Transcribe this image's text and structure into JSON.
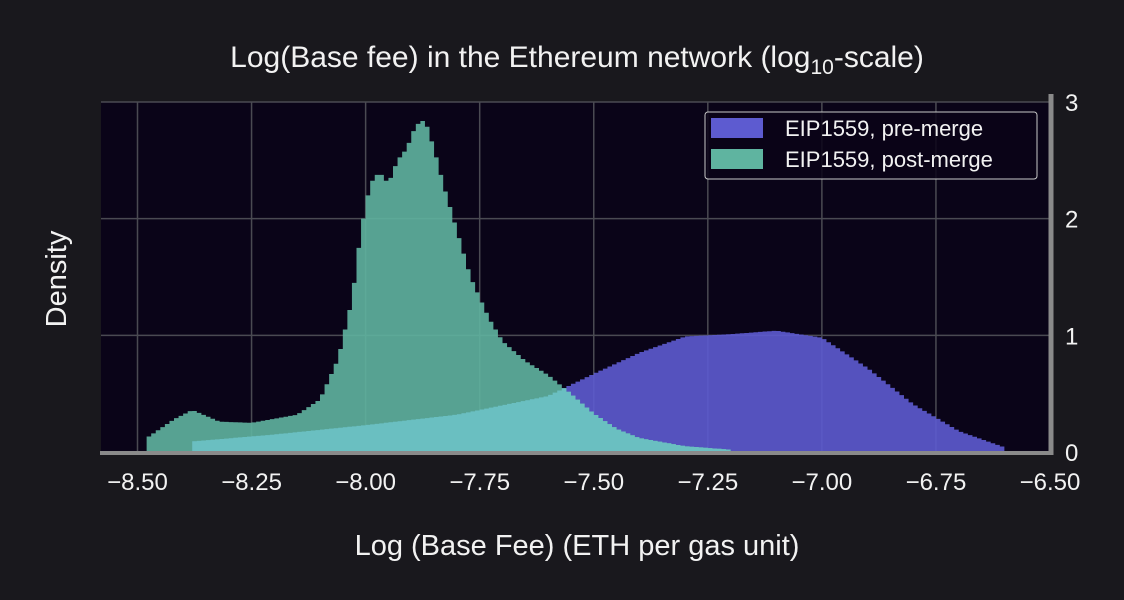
{
  "colors": {
    "background": "#19181d",
    "plot_background": "#0a0418",
    "grid": "#4a4a52",
    "spine": "#8a8a8a",
    "pre_merge": "#5d5bd0",
    "post_merge": "#5fb4a0",
    "overlap": "#6ac0c3",
    "text": "#f2f2f2"
  },
  "chart_data": {
    "type": "area",
    "title_main": "Log(Base fee) in the Ethereum network (log",
    "title_sub": "10",
    "title_end": "-scale)",
    "xlabel": "Log (Base Fee) (ETH per gas unit)",
    "ylabel": "Density",
    "xlim": [
      -8.58,
      -6.5
    ],
    "ylim": [
      0,
      3
    ],
    "y_axis_position": "right",
    "grid": true,
    "legend_position": "top-right",
    "x_ticks": [
      -8.5,
      -8.25,
      -8.0,
      -7.75,
      -7.5,
      -7.25,
      -7.0,
      -6.75,
      -6.5
    ],
    "x_tick_labels": [
      "−8.50",
      "−8.25",
      "−8.00",
      "−7.75",
      "−7.50",
      "−7.25",
      "−7.00",
      "−6.75",
      "−6.50"
    ],
    "y_ticks": [
      0,
      1,
      2,
      3
    ],
    "y_tick_labels": [
      "0",
      "1",
      "2",
      "3"
    ],
    "legend": [
      "EIP1559, pre-merge",
      "EIP1559, post-merge"
    ],
    "series": [
      {
        "name": "EIP1559, pre-merge",
        "x": [
          -8.38,
          -8.2,
          -8.0,
          -7.8,
          -7.6,
          -7.5,
          -7.4,
          -7.3,
          -7.2,
          -7.1,
          -7.0,
          -6.9,
          -6.8,
          -6.7,
          -6.6
        ],
        "y": [
          0.09,
          0.15,
          0.23,
          0.32,
          0.48,
          0.67,
          0.85,
          0.99,
          1.01,
          1.04,
          0.98,
          0.72,
          0.41,
          0.18,
          0.04
        ]
      },
      {
        "name": "EIP1559, post-merge",
        "x": [
          -8.48,
          -8.42,
          -8.38,
          -8.32,
          -8.25,
          -8.15,
          -8.1,
          -8.06,
          -8.03,
          -8.01,
          -7.99,
          -7.97,
          -7.95,
          -7.93,
          -7.91,
          -7.89,
          -7.87,
          -7.85,
          -7.83,
          -7.8,
          -7.77,
          -7.73,
          -7.7,
          -7.65,
          -7.6,
          -7.55,
          -7.5,
          -7.45,
          -7.4,
          -7.3,
          -7.2
        ],
        "y": [
          0.12,
          0.28,
          0.36,
          0.26,
          0.25,
          0.32,
          0.45,
          0.8,
          1.3,
          1.9,
          2.3,
          2.4,
          2.3,
          2.5,
          2.6,
          2.8,
          2.85,
          2.6,
          2.3,
          1.9,
          1.5,
          1.15,
          0.95,
          0.78,
          0.66,
          0.5,
          0.33,
          0.2,
          0.12,
          0.05,
          0.02
        ]
      }
    ]
  }
}
